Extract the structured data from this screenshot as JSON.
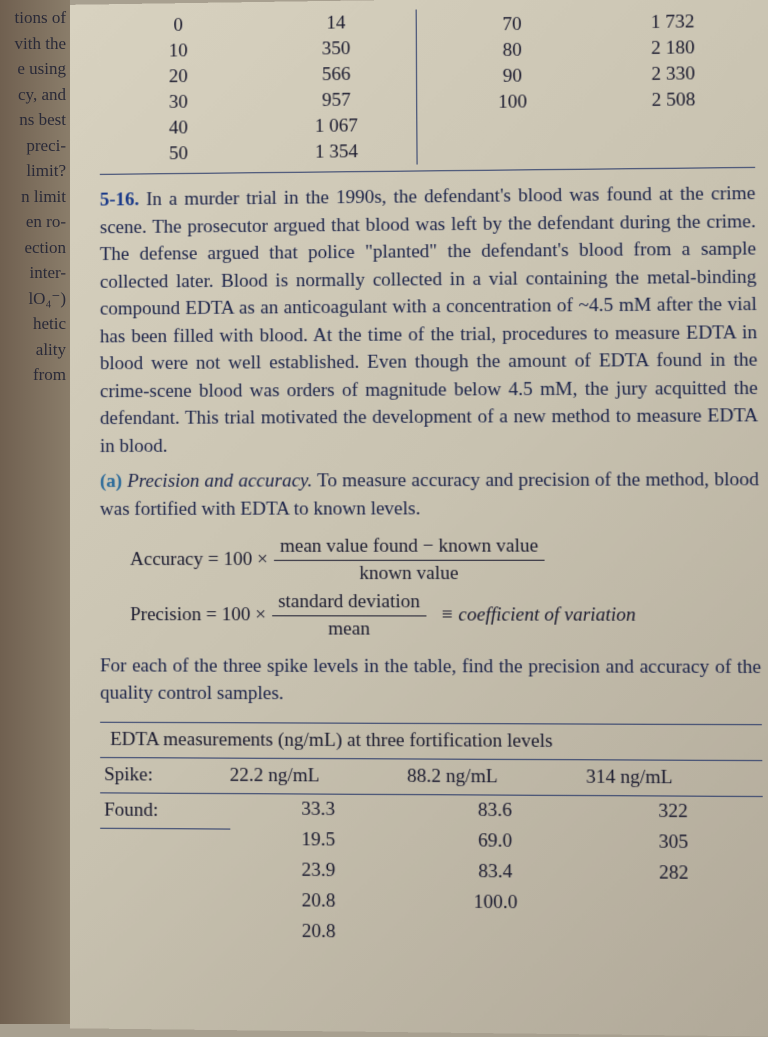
{
  "left_margin_fragments": [
    "tions of",
    "vith the",
    "e using",
    "cy, and",
    "ns best",
    "",
    "",
    "preci-",
    "",
    "",
    "limit?",
    "",
    "n limit",
    "en ro-",
    "",
    "ection",
    "inter-",
    "",
    "lO₄⁻)",
    "hetic",
    "ality",
    "from"
  ],
  "top_table": {
    "left": {
      "col1": [
        "0",
        "10",
        "20",
        "30",
        "40",
        "50"
      ],
      "col2": [
        "14",
        "350",
        "566",
        "957",
        "1 067",
        "1 354"
      ]
    },
    "right": {
      "col1": [
        "",
        "70",
        "80",
        "90",
        "100"
      ],
      "col2": [
        "",
        "1 732",
        "2 180",
        "2 330",
        "2 508"
      ]
    }
  },
  "problem": {
    "number": "5-16.",
    "text": "In a murder trial in the 1990s, the defendant's blood was found at the crime scene. The prosecutor argued that blood was left by the defendant during the crime. The defense argued that police \"planted\" the defendant's blood from a sample collected later. Blood is normally collected in a vial containing the metal-binding compound EDTA as an anticoagulant with a concentration of ~4.5 mM after the vial has been filled with blood. At the time of the trial, procedures to measure EDTA in blood were not well established. Even though the amount of EDTA found in the crime-scene blood was orders of magnitude below 4.5 mM, the jury acquitted the defendant. This trial motivated the development of a new method to measure EDTA in blood.",
    "part_a_label": "(a)",
    "part_a_title": "Precision and accuracy.",
    "part_a_text": "To measure accuracy and precision of the method, blood was fortified with EDTA to known levels.",
    "after_formula": "For each of the three spike levels in the table, find the precision and accuracy of the quality control samples."
  },
  "formulas": {
    "accuracy_lhs": "Accuracy = 100 ×",
    "accuracy_num": "mean value found − known value",
    "accuracy_den": "known value",
    "precision_lhs": "Precision = 100 ×",
    "precision_num": "standard deviation",
    "precision_den": "mean",
    "precision_rhs": "≡ coefficient of variation"
  },
  "bottom_table": {
    "title": "EDTA measurements (ng/mL) at three fortification levels",
    "spike_label": "Spike:",
    "found_label": "Found:",
    "spike_levels": [
      "22.2 ng/mL",
      "88.2 ng/mL",
      "314 ng/mL"
    ],
    "found": {
      "c1": [
        "33.3",
        "19.5",
        "23.9",
        "20.8",
        "20.8"
      ],
      "c2": [
        "83.6",
        "69.0",
        "83.4",
        "100.0"
      ],
      "c3": [
        "322",
        "305",
        "282"
      ]
    }
  }
}
